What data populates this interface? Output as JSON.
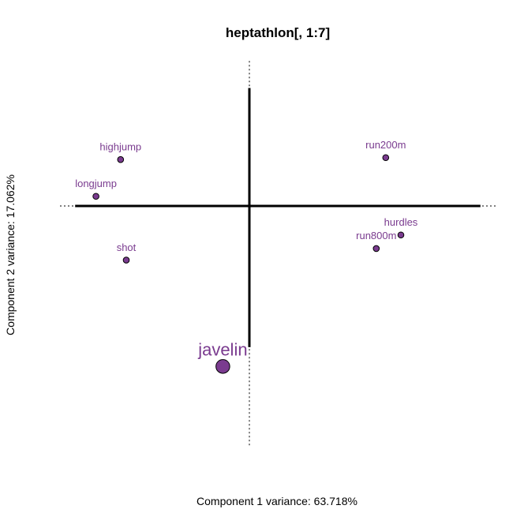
{
  "chart_data": {
    "type": "scatter",
    "title": "heptathlon[, 1:7]",
    "xlabel": "Component 1 variance: 63.718%",
    "ylabel": "Component 2 variance: 17.062%",
    "xlim": [
      -1,
      1
    ],
    "ylim": [
      -1,
      1
    ],
    "grid": false,
    "point_color": "#7a3b8f",
    "point_edge_color": "#000000",
    "axes": {
      "horizontal_bar": [
        -0.92,
        1.22
      ],
      "vertical_bar": [
        -0.73,
        0.61
      ]
    },
    "points": [
      {
        "label": "highjump",
        "x": -0.68,
        "y": 0.24,
        "size": 1
      },
      {
        "label": "longjump",
        "x": -0.81,
        "y": 0.05,
        "size": 1
      },
      {
        "label": "shot",
        "x": -0.65,
        "y": -0.28,
        "size": 1
      },
      {
        "label": "run200m",
        "x": 0.72,
        "y": 0.25,
        "size": 1
      },
      {
        "label": "hurdles",
        "x": 0.8,
        "y": -0.15,
        "size": 1
      },
      {
        "label": "run800m",
        "x": 0.67,
        "y": -0.22,
        "size": 1
      },
      {
        "label": "javelin",
        "x": -0.14,
        "y": -0.83,
        "size": 2.3
      }
    ]
  }
}
